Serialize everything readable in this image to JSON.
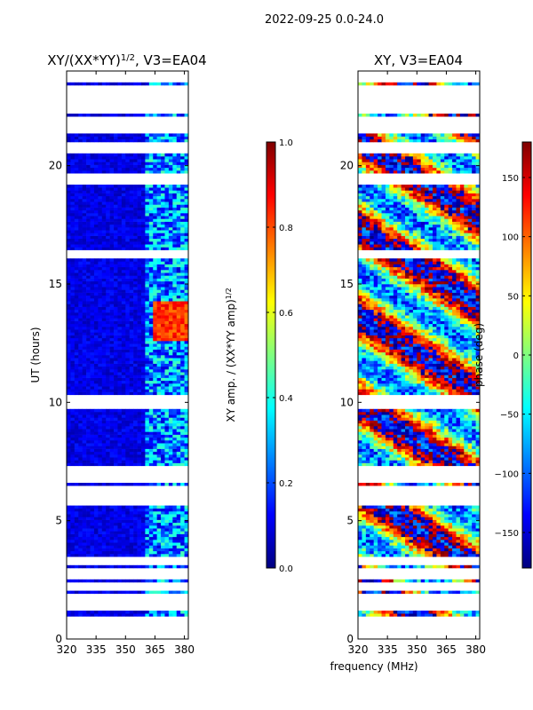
{
  "suptitle": "2022-09-25 0.0-24.0",
  "xlabel": "frequency (MHz)",
  "colors": {
    "jet": [
      "#00007f",
      "#0000ff",
      "#007fff",
      "#00ffff",
      "#7fff7f",
      "#ffff00",
      "#ff7f00",
      "#ff0000",
      "#7f0000"
    ],
    "gap": "#ffffff",
    "axis": "#000000"
  },
  "chart_data": [
    {
      "type": "heatmap",
      "title_base": "XY/(XX*YY)",
      "title_sup": "1/2",
      "title_suffix": ", V3=EA04",
      "ylabel": "UT (hours)",
      "xlim": [
        320,
        382
      ],
      "ylim": [
        0,
        24
      ],
      "xticks": [
        320,
        335,
        350,
        365,
        380
      ],
      "yticks": [
        0,
        5,
        10,
        15,
        20
      ],
      "cbar_label_base": "XY amp. / (XX*YY amp)",
      "cbar_label_sup": "1/2",
      "cbar_range": [
        0.0,
        1.0
      ],
      "cbar_ticks": [
        0.0,
        0.2,
        0.4,
        0.6,
        0.8,
        1.0
      ],
      "cbar_tick_labels": [
        "0.0",
        "0.2",
        "0.4",
        "0.6",
        "0.8",
        "1.0"
      ],
      "high_band_mhz": [
        360,
        382
      ],
      "bright_region": {
        "time_hours": [
          12.5,
          14.2
        ],
        "channels_mhz": [
          364,
          367,
          370,
          373,
          376,
          379
        ],
        "value": 0.9
      },
      "typical_low_value": 0.05,
      "typical_band_value": 0.3
    },
    {
      "type": "heatmap",
      "title": "XY, V3=EA04",
      "ylabel": "",
      "xlim": [
        320,
        382
      ],
      "ylim": [
        0,
        24
      ],
      "xticks": [
        320,
        335,
        350,
        365,
        380
      ],
      "yticks": [
        0,
        5,
        10,
        15,
        20
      ],
      "cbar_label": "phase (deg)",
      "cbar_range": [
        -180,
        180
      ],
      "cbar_ticks": [
        -150,
        -100,
        -50,
        0,
        50,
        100,
        150
      ],
      "cbar_tick_labels": [
        "−150",
        "−100",
        "−50",
        "0",
        "50",
        "100",
        "150"
      ],
      "phase_wraps": true
    }
  ],
  "observed_time_ranges_hours": [
    [
      0.95,
      1.25
    ],
    [
      1.95,
      2.1
    ],
    [
      2.4,
      2.5
    ],
    [
      3.0,
      3.1
    ],
    [
      3.5,
      5.6
    ],
    [
      6.2,
      6.3
    ],
    [
      6.5,
      6.6
    ],
    [
      7.3,
      9.7
    ],
    [
      10.3,
      16.1
    ],
    [
      16.4,
      19.2
    ],
    [
      19.7,
      20.5
    ],
    [
      21.0,
      21.4
    ],
    [
      22.1,
      22.2
    ],
    [
      23.4,
      23.5
    ]
  ]
}
